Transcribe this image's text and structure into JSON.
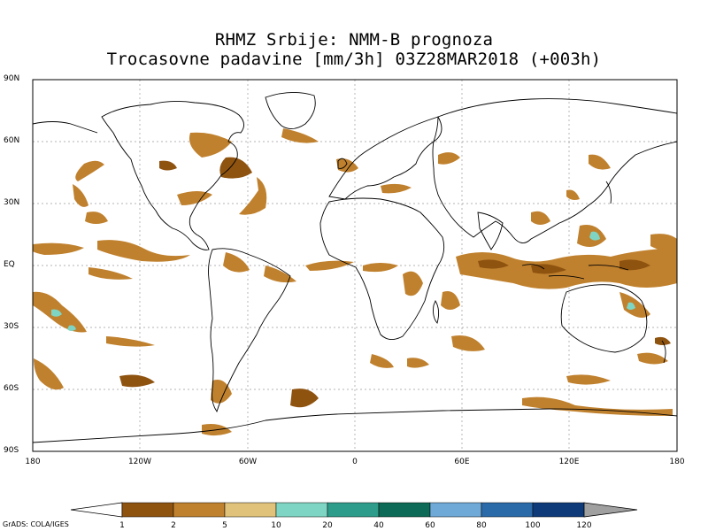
{
  "title_line1": "RHMZ Srbije: NMM-B prognoza",
  "title_line2": "Trocasovne padavine [mm/3h] 03Z28MAR2018 (+003h)",
  "lat_labels": [
    "90N",
    "60N",
    "30N",
    "EQ",
    "30S",
    "60S",
    "90S"
  ],
  "lon_labels": [
    "180",
    "120W",
    "60W",
    "0",
    "60E",
    "120E",
    "180"
  ],
  "colorbar": {
    "thresholds": [
      "1",
      "2",
      "5",
      "10",
      "20",
      "40",
      "60",
      "80",
      "100",
      "120"
    ],
    "colors": [
      "#8f5310",
      "#c0812e",
      "#e1c27a",
      "#7fd5c3",
      "#2e9c8a",
      "#0d6a56",
      "#6fa9d8",
      "#2a6aa8",
      "#0e3a7a",
      "#a0a0a0"
    ],
    "under_color": "#ffffff"
  },
  "credit": "GrADS: COLA/IGES"
}
